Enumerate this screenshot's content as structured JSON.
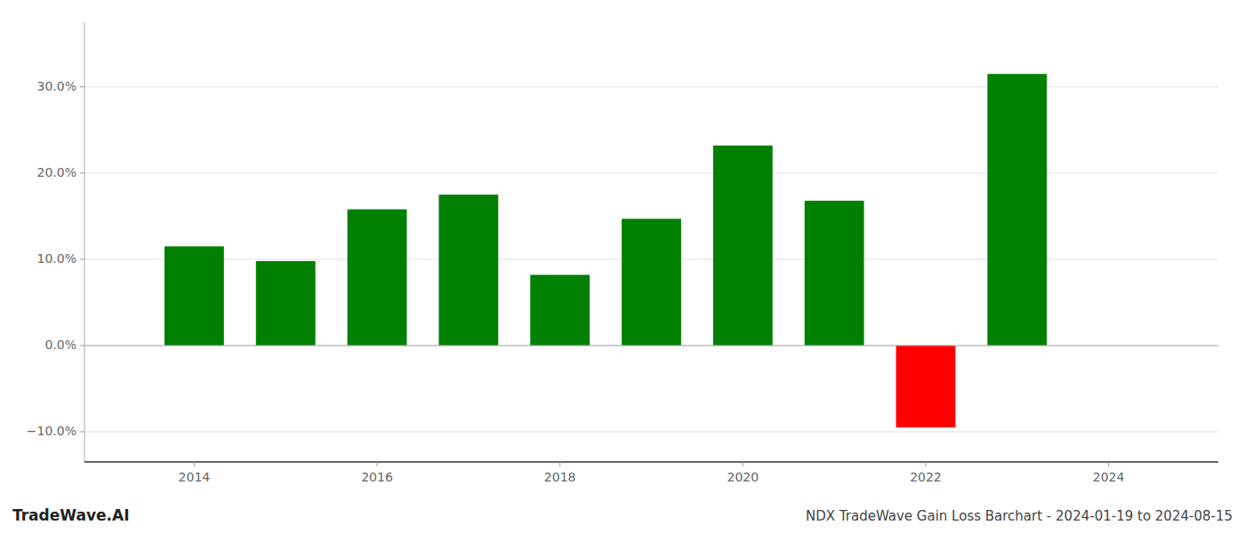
{
  "chart_data": {
    "type": "bar",
    "title": "NDX TradeWave Gain Loss Barchart - 2024-01-19 to 2024-08-15",
    "annotations": [
      "TradeWave.AI"
    ],
    "x": [
      2014,
      2015,
      2016,
      2017,
      2018,
      2019,
      2020,
      2021,
      2022,
      2023
    ],
    "values": [
      0.115,
      0.098,
      0.158,
      0.175,
      0.082,
      0.147,
      0.232,
      0.168,
      -0.095,
      0.315
    ],
    "colors": [
      "#008000",
      "#008000",
      "#008000",
      "#008000",
      "#008000",
      "#008000",
      "#008000",
      "#008000",
      "#ff0000",
      "#008000"
    ],
    "xlim": [
      2012.8,
      2025.2
    ],
    "xticks": [
      2014,
      2016,
      2018,
      2020,
      2022,
      2024
    ],
    "ylim": [
      -0.135,
      0.375
    ],
    "yticks": [
      {
        "value": -0.1,
        "label": "−10.0%"
      },
      {
        "value": 0.0,
        "label": "0.0%"
      },
      {
        "value": 0.1,
        "label": "10.0%"
      },
      {
        "value": 0.2,
        "label": "20.0%"
      },
      {
        "value": 0.3,
        "label": "30.0%"
      }
    ],
    "grid": true
  }
}
